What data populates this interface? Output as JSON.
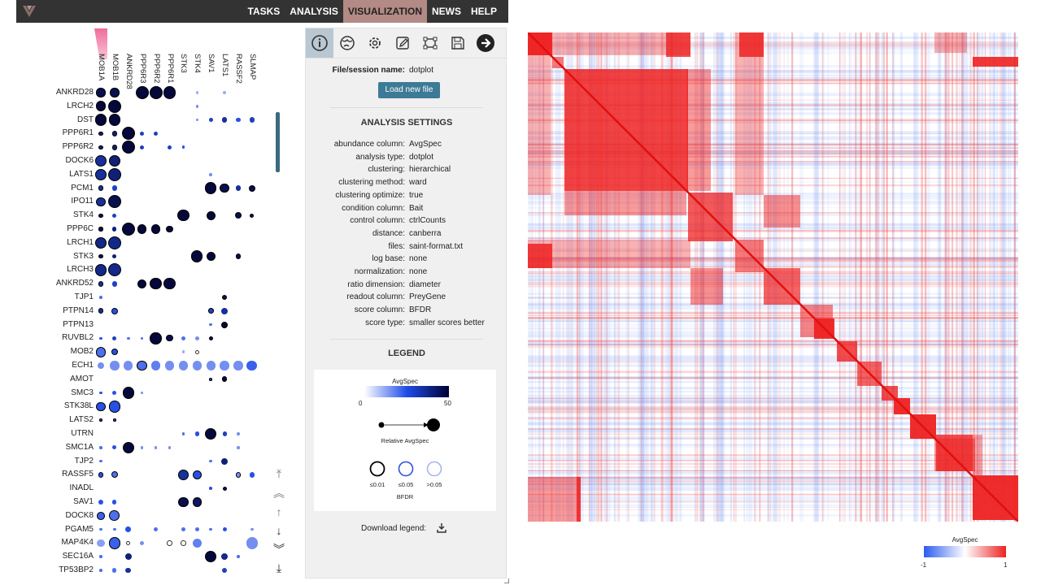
{
  "nav": {
    "items": [
      "TASKS",
      "ANALYSIS",
      "VISUALIZATION",
      "NEWS",
      "HELP"
    ],
    "active": "VISUALIZATION"
  },
  "dotplot": {
    "columns": [
      "MOB1A",
      "MOB1B",
      "ANKRD28",
      "PPP6R3",
      "PPP6R2",
      "PPP6R1",
      "STK3",
      "STK4",
      "SAV1",
      "LATS1",
      "RASSF2",
      "SLMAP"
    ],
    "rows": [
      {
        "name": "ANKRD28",
        "dots": [
          [
            0,
            6,
            0.9,
            "k"
          ],
          [
            1,
            6,
            0.9,
            "k"
          ],
          [
            3,
            9,
            0.95,
            "k"
          ],
          [
            4,
            9,
            0.95,
            "k"
          ],
          [
            5,
            9,
            0.95,
            "k"
          ],
          [
            7,
            1,
            0.2,
            "n"
          ],
          [
            9,
            1,
            0.2,
            "n"
          ]
        ]
      },
      {
        "name": "LRCH2",
        "dots": [
          [
            0,
            7,
            0.95,
            "k"
          ],
          [
            1,
            9,
            0.95,
            "k"
          ],
          [
            7,
            1,
            0.3,
            "n"
          ]
        ]
      },
      {
        "name": "DST",
        "dots": [
          [
            0,
            8,
            0.95,
            "k"
          ],
          [
            1,
            8,
            0.95,
            "k"
          ],
          [
            7,
            1,
            0.3,
            "n"
          ],
          [
            8,
            2,
            0.6,
            "n"
          ],
          [
            9,
            3,
            0.7,
            "n"
          ],
          [
            10,
            2,
            0.5,
            "n"
          ],
          [
            11,
            3,
            0.6,
            "n"
          ]
        ]
      },
      {
        "name": "PPP6R1",
        "dots": [
          [
            0,
            2,
            0.8,
            "k"
          ],
          [
            1,
            3,
            0.8,
            "k"
          ],
          [
            2,
            9,
            0.95,
            "k"
          ],
          [
            3,
            2,
            0.6,
            "n"
          ],
          [
            4,
            2,
            0.6,
            "n"
          ]
        ]
      },
      {
        "name": "PPP6R2",
        "dots": [
          [
            0,
            2,
            0.8,
            "k"
          ],
          [
            1,
            3,
            0.8,
            "k"
          ],
          [
            2,
            9,
            0.95,
            "k"
          ],
          [
            3,
            2,
            0.6,
            "n"
          ],
          [
            5,
            2,
            0.6,
            "n"
          ],
          [
            6,
            1,
            0.5,
            "n"
          ]
        ]
      },
      {
        "name": "DOCK6",
        "dots": [
          [
            0,
            8,
            0.7,
            "k"
          ],
          [
            1,
            8,
            0.8,
            "k"
          ]
        ]
      },
      {
        "name": "LATS1",
        "dots": [
          [
            0,
            8,
            0.7,
            "k"
          ],
          [
            1,
            9,
            0.8,
            "k"
          ],
          [
            8,
            1,
            0.3,
            "n"
          ]
        ]
      },
      {
        "name": "PCM1",
        "dots": [
          [
            0,
            3,
            0.7,
            "k"
          ],
          [
            1,
            3,
            0.6,
            "n"
          ],
          [
            8,
            8,
            0.95,
            "k"
          ],
          [
            9,
            6,
            0.9,
            "k"
          ],
          [
            10,
            3,
            0.7,
            "n"
          ],
          [
            11,
            4,
            0.9,
            "k"
          ]
        ]
      },
      {
        "name": "IPO11",
        "dots": [
          [
            0,
            6,
            0.7,
            "k"
          ],
          [
            1,
            9,
            0.9,
            "k"
          ]
        ]
      },
      {
        "name": "STK4",
        "dots": [
          [
            0,
            2,
            0.9,
            "k"
          ],
          [
            1,
            2,
            0.6,
            "n"
          ],
          [
            6,
            8,
            0.95,
            "k"
          ],
          [
            8,
            6,
            0.95,
            "k"
          ],
          [
            10,
            4,
            0.9,
            "k"
          ],
          [
            11,
            2,
            0.9,
            "k"
          ]
        ]
      },
      {
        "name": "PPP6C",
        "dots": [
          [
            0,
            2,
            0.9,
            "k"
          ],
          [
            1,
            2,
            0.8,
            "n"
          ],
          [
            2,
            9,
            0.95,
            "k"
          ],
          [
            3,
            6,
            0.95,
            "k"
          ],
          [
            4,
            6,
            0.95,
            "k"
          ],
          [
            5,
            4,
            0.95,
            "k"
          ]
        ]
      },
      {
        "name": "LRCH1",
        "dots": [
          [
            0,
            8,
            0.75,
            "k"
          ],
          [
            1,
            9,
            0.75,
            "k"
          ]
        ]
      },
      {
        "name": "STK3",
        "dots": [
          [
            0,
            2,
            0.9,
            "k"
          ],
          [
            1,
            2,
            0.8,
            "n"
          ],
          [
            7,
            8,
            0.95,
            "k"
          ],
          [
            8,
            6,
            0.95,
            "k"
          ],
          [
            10,
            3,
            0.9,
            "k"
          ]
        ]
      },
      {
        "name": "LRCH3",
        "dots": [
          [
            0,
            8,
            0.75,
            "k"
          ],
          [
            1,
            9,
            0.75,
            "k"
          ]
        ]
      },
      {
        "name": "ANKRD52",
        "dots": [
          [
            0,
            3,
            0.7,
            "k"
          ],
          [
            1,
            3,
            0.6,
            "n"
          ],
          [
            3,
            6,
            0.95,
            "k"
          ],
          [
            4,
            8,
            0.95,
            "k"
          ],
          [
            5,
            8,
            0.95,
            "k"
          ]
        ]
      },
      {
        "name": "TJP1",
        "dots": [
          [
            0,
            1,
            0.4,
            "n"
          ],
          [
            9,
            3,
            0.9,
            "k"
          ]
        ]
      },
      {
        "name": "PTPN14",
        "dots": [
          [
            0,
            3,
            0.7,
            "k"
          ],
          [
            1,
            4,
            0.5,
            "k"
          ],
          [
            8,
            3,
            0.6,
            "k"
          ],
          [
            9,
            4,
            0.7,
            "n"
          ]
        ]
      },
      {
        "name": "PTPN13",
        "dots": [
          [
            8,
            1,
            0.4,
            "n"
          ],
          [
            9,
            4,
            0.95,
            "k"
          ]
        ]
      },
      {
        "name": "RUVBL2",
        "dots": [
          [
            0,
            1,
            0.5,
            "n"
          ],
          [
            1,
            2,
            0.6,
            "n"
          ],
          [
            2,
            1,
            0.4,
            "n"
          ],
          [
            3,
            1,
            0.4,
            "n"
          ],
          [
            4,
            8,
            0.95,
            "k"
          ],
          [
            5,
            4,
            0.9,
            "k"
          ],
          [
            6,
            2,
            0.4,
            "n"
          ],
          [
            7,
            2,
            0.3,
            "n"
          ],
          [
            8,
            2,
            0.9,
            "k"
          ]
        ]
      },
      {
        "name": "MOB2",
        "dots": [
          [
            0,
            7,
            0.4,
            "k"
          ],
          [
            1,
            4,
            0.5,
            "k"
          ],
          [
            6,
            1,
            0.2,
            "n"
          ],
          [
            7,
            2,
            0.2,
            "o"
          ]
        ]
      },
      {
        "name": "ECH1",
        "dots": [
          [
            0,
            4,
            0.3,
            "n"
          ],
          [
            1,
            6,
            0.3,
            "n"
          ],
          [
            2,
            6,
            0.3,
            "n"
          ],
          [
            3,
            7,
            0.4,
            "k"
          ],
          [
            4,
            6,
            0.35,
            "n"
          ],
          [
            5,
            6,
            0.3,
            "n"
          ],
          [
            6,
            6,
            0.3,
            "n"
          ],
          [
            7,
            6,
            0.3,
            "n"
          ],
          [
            8,
            6,
            0.3,
            "n"
          ],
          [
            9,
            6,
            0.3,
            "n"
          ],
          [
            10,
            6,
            0.3,
            "n"
          ],
          [
            11,
            7,
            0.45,
            "n"
          ]
        ]
      },
      {
        "name": "AMOT",
        "dots": [
          [
            8,
            1,
            0.6,
            "k"
          ],
          [
            9,
            3,
            0.95,
            "k"
          ]
        ]
      },
      {
        "name": "SMC3",
        "dots": [
          [
            0,
            1,
            0.5,
            "n"
          ],
          [
            1,
            2,
            0.5,
            "n"
          ],
          [
            2,
            8,
            0.95,
            "k"
          ],
          [
            3,
            1,
            0.3,
            "n"
          ]
        ]
      },
      {
        "name": "STK38L",
        "dots": [
          [
            0,
            6,
            0.5,
            "k"
          ],
          [
            1,
            8,
            0.5,
            "k"
          ]
        ]
      },
      {
        "name": "LATS2",
        "dots": [
          [
            0,
            1,
            0.6,
            "k"
          ],
          [
            1,
            1,
            0.6,
            "k"
          ]
        ]
      },
      {
        "name": "UTRN",
        "dots": [
          [
            6,
            1,
            0.4,
            "n"
          ],
          [
            7,
            2,
            0.5,
            "n"
          ],
          [
            8,
            8,
            0.95,
            "k"
          ],
          [
            9,
            2,
            0.6,
            "n"
          ],
          [
            10,
            1,
            0.3,
            "n"
          ]
        ]
      },
      {
        "name": "SMC1A",
        "dots": [
          [
            0,
            1,
            0.4,
            "n"
          ],
          [
            1,
            2,
            0.5,
            "n"
          ],
          [
            2,
            8,
            0.95,
            "k"
          ],
          [
            3,
            1,
            0.3,
            "n"
          ],
          [
            4,
            1,
            0.3,
            "n"
          ],
          [
            5,
            1,
            0.3,
            "n"
          ],
          [
            10,
            1,
            0.3,
            "n"
          ]
        ]
      },
      {
        "name": "TJP2",
        "dots": [
          [
            0,
            1,
            0.4,
            "n"
          ],
          [
            8,
            1,
            0.4,
            "n"
          ],
          [
            9,
            4,
            0.8,
            "n"
          ]
        ]
      },
      {
        "name": "RASSF5",
        "dots": [
          [
            0,
            3,
            0.5,
            "k"
          ],
          [
            1,
            4,
            0.4,
            "k"
          ],
          [
            6,
            7,
            0.7,
            "k"
          ],
          [
            7,
            6,
            0.5,
            "k"
          ],
          [
            10,
            3,
            0.3,
            "k"
          ],
          [
            11,
            3,
            0.5,
            "n"
          ]
        ]
      },
      {
        "name": "INADL",
        "dots": [
          [
            8,
            1,
            0.5,
            "n"
          ],
          [
            9,
            2,
            0.9,
            "k"
          ]
        ]
      },
      {
        "name": "SAV1",
        "dots": [
          [
            0,
            3,
            0.5,
            "n"
          ],
          [
            1,
            2,
            0.5,
            "n"
          ],
          [
            6,
            7,
            0.9,
            "k"
          ],
          [
            7,
            6,
            0.85,
            "k"
          ]
        ]
      },
      {
        "name": "DOCK8",
        "dots": [
          [
            0,
            5,
            0.45,
            "k"
          ],
          [
            1,
            7,
            0.4,
            "k"
          ]
        ]
      },
      {
        "name": "PGAM5",
        "dots": [
          [
            0,
            1,
            0.4,
            "n"
          ],
          [
            1,
            1,
            0.4,
            "n"
          ],
          [
            2,
            3,
            0.5,
            "n"
          ],
          [
            4,
            2,
            0.4,
            "n"
          ],
          [
            6,
            2,
            0.4,
            "n"
          ],
          [
            7,
            2,
            0.4,
            "n"
          ],
          [
            8,
            1,
            0.4,
            "n"
          ],
          [
            9,
            2,
            0.5,
            "n"
          ],
          [
            11,
            1,
            0.3,
            "n"
          ]
        ]
      },
      {
        "name": "MAP4K4",
        "dots": [
          [
            0,
            5,
            0.25,
            "n"
          ],
          [
            1,
            8,
            0.45,
            "k"
          ],
          [
            2,
            2,
            0.2,
            "o"
          ],
          [
            3,
            2,
            0.3,
            "n"
          ],
          [
            5,
            3,
            0.25,
            "o"
          ],
          [
            6,
            3,
            0.3,
            "o"
          ],
          [
            7,
            6,
            0.35,
            "n"
          ],
          [
            11,
            8,
            0.3,
            "n"
          ]
        ]
      },
      {
        "name": "SEC16A",
        "dots": [
          [
            0,
            1,
            0.4,
            "n"
          ],
          [
            2,
            4,
            0.8,
            "n"
          ],
          [
            8,
            8,
            0.95,
            "k"
          ],
          [
            9,
            4,
            0.75,
            "n"
          ],
          [
            10,
            1,
            0.4,
            "n"
          ]
        ]
      },
      {
        "name": "TP53BP2",
        "dots": [
          [
            0,
            1,
            0.4,
            "n"
          ],
          [
            1,
            2,
            0.4,
            "n"
          ],
          [
            2,
            3,
            0.7,
            "n"
          ],
          [
            9,
            3,
            0.6,
            "n"
          ]
        ]
      }
    ]
  },
  "panel": {
    "file_label": "File/session name:",
    "file_value": "dotplot",
    "load_button": "Load new file",
    "analysis_title": "ANALYSIS SETTINGS",
    "settings": [
      {
        "k": "abundance column:",
        "v": "AvgSpec"
      },
      {
        "k": "analysis type:",
        "v": "dotplot"
      },
      {
        "k": "clustering:",
        "v": "hierarchical"
      },
      {
        "k": "clustering method:",
        "v": "ward"
      },
      {
        "k": "clustering optimize:",
        "v": "true"
      },
      {
        "k": "condition column:",
        "v": "Bait"
      },
      {
        "k": "control column:",
        "v": "ctrlCounts"
      },
      {
        "k": "distance:",
        "v": "canberra"
      },
      {
        "k": "files:",
        "v": "saint-format.txt"
      },
      {
        "k": "log base:",
        "v": "none"
      },
      {
        "k": "normalization:",
        "v": "none"
      },
      {
        "k": "ratio dimension:",
        "v": "diameter"
      },
      {
        "k": "readout column:",
        "v": "PreyGene"
      },
      {
        "k": "score column:",
        "v": "BFDR"
      },
      {
        "k": "score type:",
        "v": "smaller scores better"
      }
    ],
    "legend_title": "LEGEND",
    "legend": {
      "color_title": "AvgSpec",
      "min": "0",
      "max": "50",
      "size_label": "Relative AvgSpec",
      "circles": [
        "≤0.01",
        "≤0.05",
        ">0.05"
      ],
      "score_label": "BFDR"
    },
    "download_label": "Download legend:",
    "tools": [
      "info-icon",
      "globe-icon",
      "gear-icon",
      "edit-icon",
      "crop-icon",
      "save-icon",
      "next-icon"
    ]
  },
  "heatmap_legend": {
    "title": "AvgSpec",
    "min": "-1",
    "max": "1"
  },
  "colors": {
    "nav_bg": "#333333",
    "nav_active": "#b38a85",
    "accent": "#3d7a96",
    "heat_pos": "#ee2222",
    "heat_neg": "#3b6ff0"
  }
}
